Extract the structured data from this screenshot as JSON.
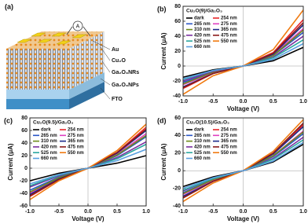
{
  "schematic": {
    "panel_label": "(a)",
    "probe": "A",
    "layers": [
      "Au",
      "Cu₂O",
      "Ga₂O₃NRs",
      "Ga₂O₃NPs",
      "FTO"
    ]
  },
  "chart_data": [
    {
      "type": "line",
      "panel_label": "(b)",
      "title": "Cu₂O(9)/Ga₂O₃",
      "xlabel": "Voltage (V)",
      "ylabel": "Current (μA)",
      "x": [
        -1,
        -0.5,
        0,
        0.5,
        1
      ],
      "xlim": [
        -1,
        1
      ],
      "xticks": [
        {
          "value": -1,
          "label": "-1.0"
        },
        -0.5,
        {
          "value": 0,
          "label": "0.0"
        },
        0.5,
        {
          "value": 1,
          "label": "1.0"
        }
      ],
      "ylim": [
        -40,
        80
      ],
      "yticks": [
        -40,
        -20,
        0,
        20,
        40,
        60,
        80
      ],
      "legend": "top-left",
      "series": [
        {
          "name": "dark",
          "color": "#000000",
          "values": [
            -15,
            -5,
            0,
            7,
            25
          ]
        },
        {
          "name": "254 nm",
          "color": "#e8262a",
          "values": [
            -30,
            -10,
            0,
            18,
            62
          ]
        },
        {
          "name": "265 nm",
          "color": "#2a56c6",
          "values": [
            -22,
            -8,
            0,
            14,
            45
          ]
        },
        {
          "name": "275 nm",
          "color": "#e040c0",
          "values": [
            -25,
            -9,
            0,
            15,
            50
          ]
        },
        {
          "name": "310 nm",
          "color": "#6e8b1a",
          "values": [
            -24,
            -8,
            0,
            14,
            48
          ]
        },
        {
          "name": "365 nm",
          "color": "#1b2a8a",
          "values": [
            -28,
            -10,
            0,
            16,
            55
          ]
        },
        {
          "name": "420 nm",
          "color": "#7a2ea0",
          "values": [
            -20,
            -7,
            0,
            12,
            40
          ]
        },
        {
          "name": "475 nm",
          "color": "#8b1a1a",
          "values": [
            -29,
            -10,
            0,
            17,
            58
          ]
        },
        {
          "name": "525 nm",
          "color": "#2aa7a0",
          "values": [
            -18,
            -6,
            0,
            11,
            35
          ]
        },
        {
          "name": "550 nm",
          "color": "#f07a10",
          "values": [
            -38,
            -13,
            0,
            22,
            75
          ]
        },
        {
          "name": "660 nm",
          "color": "#5aa0e0",
          "values": [
            -17,
            -6,
            0,
            9,
            30
          ]
        }
      ]
    },
    {
      "type": "line",
      "panel_label": "(c)",
      "title": "Cu₂O(9.5)/Ga₂O₃",
      "xlabel": "Voltage (V)",
      "ylabel": "Current (μA)",
      "x": [
        -1,
        -0.5,
        0,
        0.5,
        1
      ],
      "xlim": [
        -1,
        1
      ],
      "xticks": [
        {
          "value": -1,
          "label": "-1.0"
        },
        -0.5,
        {
          "value": 0,
          "label": "0.0"
        },
        0.5,
        {
          "value": 1,
          "label": "1.0"
        }
      ],
      "ylim": [
        -60,
        80
      ],
      "yticks": [
        -60,
        -40,
        -20,
        0,
        20,
        40,
        60,
        80
      ],
      "legend": "top-left",
      "series": [
        {
          "name": "dark",
          "color": "#000000",
          "values": [
            -20,
            -8,
            0,
            8,
            20
          ]
        },
        {
          "name": "254 nm",
          "color": "#e8262a",
          "values": [
            -45,
            -18,
            0,
            25,
            65
          ]
        },
        {
          "name": "265 nm",
          "color": "#2a56c6",
          "values": [
            -35,
            -14,
            0,
            20,
            50
          ]
        },
        {
          "name": "275 nm",
          "color": "#e040c0",
          "values": [
            -40,
            -16,
            0,
            22,
            55
          ]
        },
        {
          "name": "310 nm",
          "color": "#6e8b1a",
          "values": [
            -38,
            -15,
            0,
            21,
            52
          ]
        },
        {
          "name": "365 nm",
          "color": "#1b2a8a",
          "values": [
            -42,
            -17,
            0,
            24,
            60
          ]
        },
        {
          "name": "420 nm",
          "color": "#7a2ea0",
          "values": [
            -30,
            -12,
            0,
            17,
            42
          ]
        },
        {
          "name": "475 nm",
          "color": "#8b1a1a",
          "values": [
            -44,
            -18,
            0,
            25,
            62
          ]
        },
        {
          "name": "525 nm",
          "color": "#2aa7a0",
          "values": [
            -28,
            -11,
            0,
            15,
            38
          ]
        },
        {
          "name": "550 nm",
          "color": "#f07a10",
          "values": [
            -50,
            -20,
            0,
            28,
            70
          ]
        },
        {
          "name": "660 nm",
          "color": "#5aa0e0",
          "values": [
            -25,
            -10,
            0,
            12,
            30
          ]
        }
      ]
    },
    {
      "type": "line",
      "panel_label": "(d)",
      "title": "Cu₂O(10.5)/Ga₂O₃",
      "xlabel": "Voltage (V)",
      "ylabel": "Current (μA)",
      "x": [
        -1,
        -0.5,
        0,
        0.5,
        1
      ],
      "xlim": [
        -1,
        1
      ],
      "xticks": [
        {
          "value": -1,
          "label": "-1.0"
        },
        -0.5,
        {
          "value": 0,
          "label": "0.0"
        },
        0.5,
        {
          "value": 1,
          "label": "1.0"
        }
      ],
      "ylim": [
        -40,
        60
      ],
      "yticks": [
        -40,
        -20,
        0,
        20,
        40,
        60
      ],
      "legend": "top-left",
      "series": [
        {
          "name": "dark",
          "color": "#000000",
          "values": [
            -18,
            -7,
            0,
            10,
            30
          ]
        },
        {
          "name": "254 nm",
          "color": "#e8262a",
          "values": [
            -30,
            -12,
            0,
            20,
            52
          ]
        },
        {
          "name": "265 nm",
          "color": "#2a56c6",
          "values": [
            -25,
            -10,
            0,
            16,
            42
          ]
        },
        {
          "name": "275 nm",
          "color": "#e040c0",
          "values": [
            -27,
            -11,
            0,
            17,
            45
          ]
        },
        {
          "name": "310 nm",
          "color": "#6e8b1a",
          "values": [
            -26,
            -10,
            0,
            17,
            44
          ]
        },
        {
          "name": "365 nm",
          "color": "#1b2a8a",
          "values": [
            -29,
            -12,
            0,
            19,
            50
          ]
        },
        {
          "name": "420 nm",
          "color": "#7a2ea0",
          "values": [
            -23,
            -9,
            0,
            14,
            38
          ]
        },
        {
          "name": "475 nm",
          "color": "#8b1a1a",
          "values": [
            -31,
            -12,
            0,
            20,
            54
          ]
        },
        {
          "name": "525 nm",
          "color": "#2aa7a0",
          "values": [
            -22,
            -9,
            0,
            13,
            35
          ]
        },
        {
          "name": "550 nm",
          "color": "#f07a10",
          "values": [
            -35,
            -14,
            0,
            22,
            58
          ]
        },
        {
          "name": "660 nm",
          "color": "#5aa0e0",
          "values": [
            -20,
            -8,
            0,
            11,
            32
          ]
        }
      ]
    }
  ]
}
